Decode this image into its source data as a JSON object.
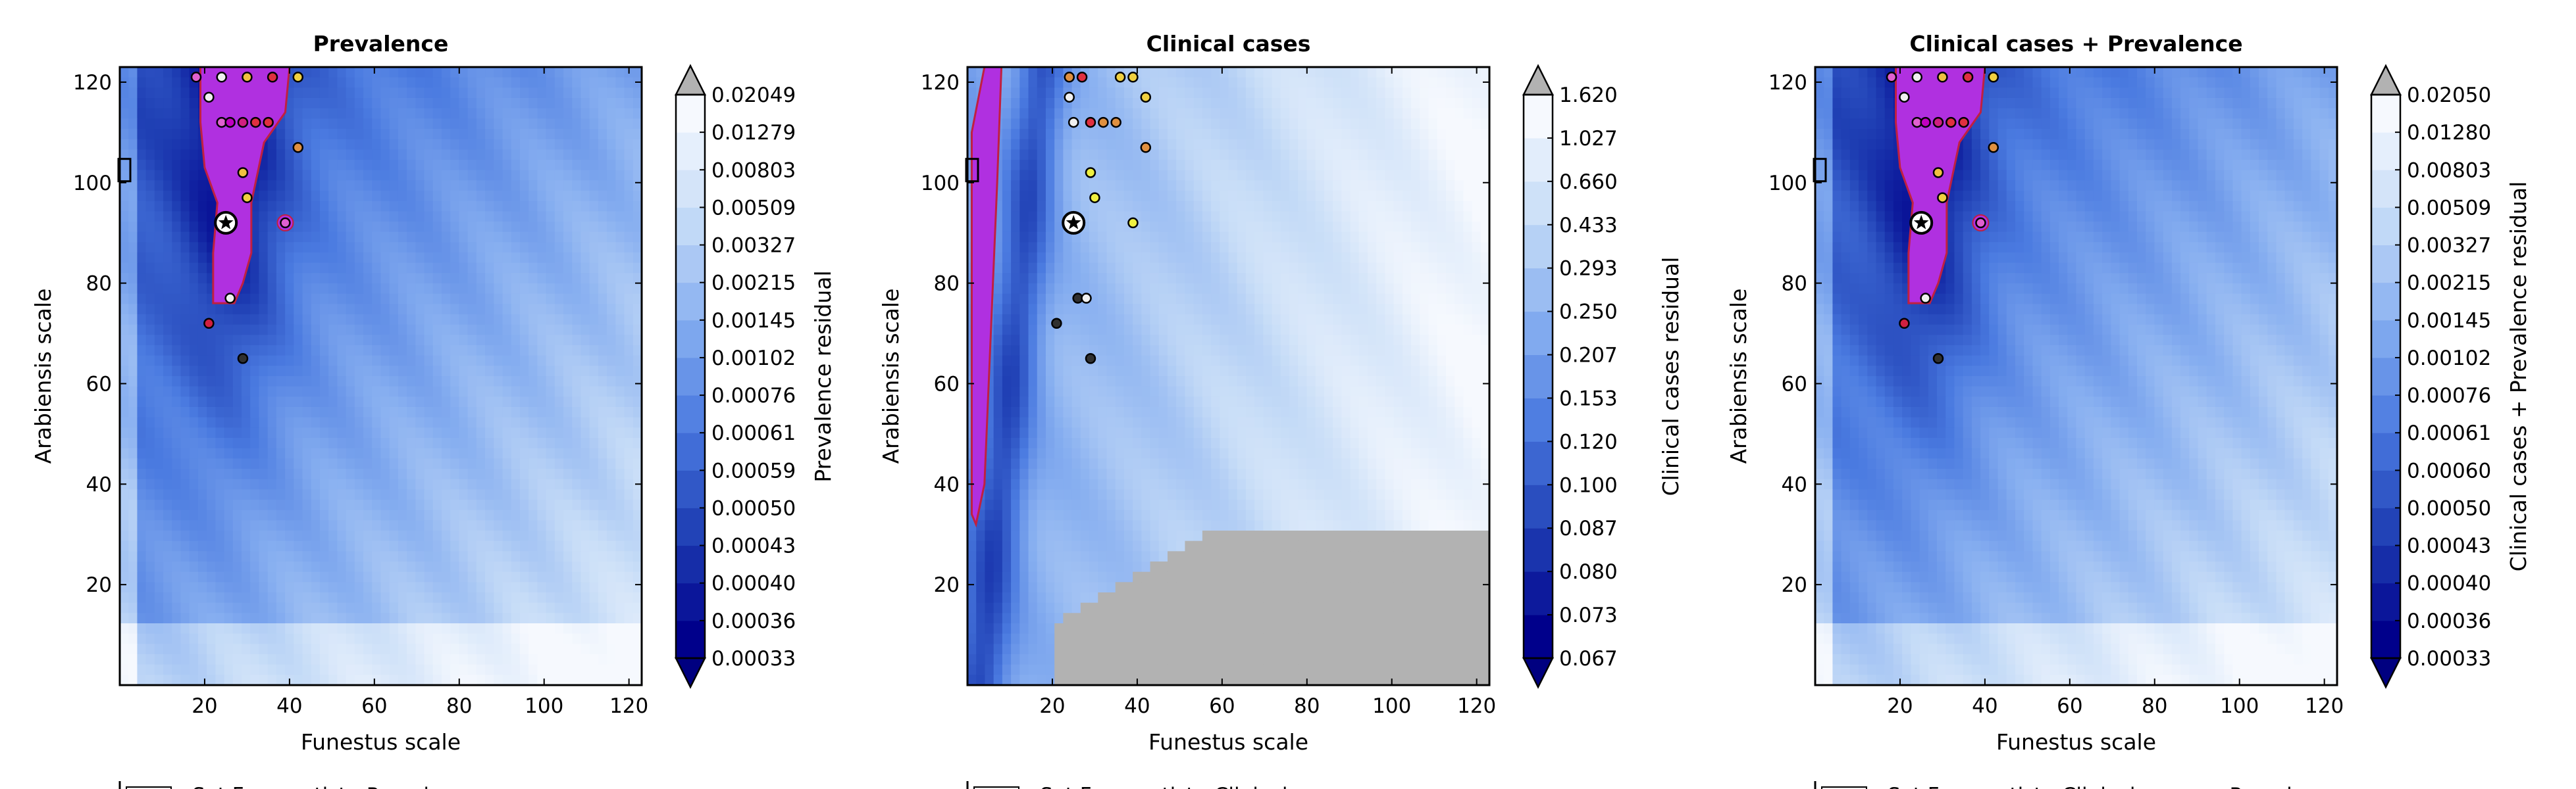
{
  "chart_data": [
    {
      "type": "heatmap",
      "title": "Prevalence",
      "xlabel": "Funestus scale",
      "ylabel": "Arabiensis scale",
      "xlim": [
        0,
        123
      ],
      "ylim": [
        0,
        123
      ],
      "xticks": [
        20,
        40,
        60,
        80,
        100,
        120
      ],
      "yticks": [
        20,
        40,
        60,
        80,
        100,
        120
      ],
      "colorbar": {
        "label": "Prevalence residual",
        "levels": [
          "0.00033",
          "0.00036",
          "0.00040",
          "0.00043",
          "0.00050",
          "0.00059",
          "0.00061",
          "0.00076",
          "0.00102",
          "0.00145",
          "0.00215",
          "0.00327",
          "0.00509",
          "0.00803",
          "0.01279",
          "0.02049"
        ],
        "extend": "both"
      },
      "highlight_color": "#b030e0",
      "best_fit_marker": [
        25,
        92
      ],
      "points": [
        {
          "x": 21,
          "y": 117,
          "color": "#f0f0f0"
        },
        {
          "x": 24,
          "y": 112,
          "color": "#e060d0"
        },
        {
          "x": 26,
          "y": 112,
          "color": "#c000c0"
        },
        {
          "x": 29,
          "y": 112,
          "color": "#d02080"
        },
        {
          "x": 32,
          "y": 112,
          "color": "#e03040"
        },
        {
          "x": 35,
          "y": 112,
          "color": "#e03040"
        },
        {
          "x": 29,
          "y": 102,
          "color": "#f0c040"
        },
        {
          "x": 30,
          "y": 97,
          "color": "#f0d040"
        },
        {
          "x": 39,
          "y": 92,
          "color": "#e060d0"
        },
        {
          "x": 42,
          "y": 107,
          "color": "#e09040"
        },
        {
          "x": 26,
          "y": 77,
          "color": "#f0f0f0"
        },
        {
          "x": 21,
          "y": 72,
          "color": "#d02040"
        },
        {
          "x": 29,
          "y": 65,
          "color": "#303030"
        }
      ],
      "top_points": [
        {
          "x": 18,
          "y": 121,
          "color": "#e060d0"
        },
        {
          "x": 24,
          "y": 121,
          "color": "#f0f0f0"
        },
        {
          "x": 30,
          "y": 121,
          "color": "#f0c040"
        },
        {
          "x": 36,
          "y": 121,
          "color": "#e03040"
        },
        {
          "x": 42,
          "y": 121,
          "color": "#f0d040"
        }
      ],
      "legend_text": "Set Frequentist : Prevalence"
    },
    {
      "type": "heatmap",
      "title": "Clinical cases",
      "xlabel": "Funestus scale",
      "ylabel": "Arabiensis scale",
      "xlim": [
        0,
        123
      ],
      "ylim": [
        0,
        123
      ],
      "xticks": [
        20,
        40,
        60,
        80,
        100,
        120
      ],
      "yticks": [
        20,
        40,
        60,
        80,
        100,
        120
      ],
      "colorbar": {
        "label": "Clinical cases residual",
        "levels": [
          "0.067",
          "0.073",
          "0.080",
          "0.087",
          "0.100",
          "0.120",
          "0.153",
          "0.207",
          "0.250",
          "0.293",
          "0.433",
          "0.660",
          "1.027",
          "1.620"
        ],
        "extend": "both"
      },
      "highlight_color": "#b030e0",
      "best_fit_marker": [
        25,
        92
      ],
      "points": [
        {
          "x": 24,
          "y": 117,
          "color": "#f0f0f0"
        },
        {
          "x": 25,
          "y": 112,
          "color": "#f0f0f0"
        },
        {
          "x": 29,
          "y": 112,
          "color": "#e03040"
        },
        {
          "x": 32,
          "y": 112,
          "color": "#e09040"
        },
        {
          "x": 35,
          "y": 112,
          "color": "#e09040"
        },
        {
          "x": 42,
          "y": 117,
          "color": "#f0d040"
        },
        {
          "x": 42,
          "y": 107,
          "color": "#e09040"
        },
        {
          "x": 29,
          "y": 102,
          "color": "#f0f040"
        },
        {
          "x": 30,
          "y": 97,
          "color": "#f0f040"
        },
        {
          "x": 39,
          "y": 92,
          "color": "#f0f040"
        },
        {
          "x": 26,
          "y": 77,
          "color": "#303030"
        },
        {
          "x": 28,
          "y": 77,
          "color": "#f0f0f0"
        },
        {
          "x": 21,
          "y": 72,
          "color": "#303030"
        },
        {
          "x": 29,
          "y": 65,
          "color": "#303030"
        }
      ],
      "top_points": [
        {
          "x": 24,
          "y": 121,
          "color": "#e09040"
        },
        {
          "x": 27,
          "y": 121,
          "color": "#e03040"
        },
        {
          "x": 36,
          "y": 121,
          "color": "#f0d040"
        },
        {
          "x": 39,
          "y": 121,
          "color": "#f0d040"
        }
      ],
      "legend_text": "Set Frequentist : Clinical cases"
    },
    {
      "type": "heatmap",
      "title": "Clinical cases + Prevalence",
      "xlabel": "Funestus scale",
      "ylabel": "Arabiensis scale",
      "xlim": [
        0,
        123
      ],
      "ylim": [
        0,
        123
      ],
      "xticks": [
        20,
        40,
        60,
        80,
        100,
        120
      ],
      "yticks": [
        20,
        40,
        60,
        80,
        100,
        120
      ],
      "colorbar": {
        "label": "Clinical cases + Prevalence residual",
        "levels": [
          "0.00033",
          "0.00036",
          "0.00040",
          "0.00043",
          "0.00050",
          "0.00060",
          "0.00061",
          "0.00076",
          "0.00102",
          "0.00145",
          "0.00215",
          "0.00327",
          "0.00509",
          "0.00803",
          "0.01280",
          "0.02050"
        ],
        "extend": "both"
      },
      "highlight_color": "#b030e0",
      "best_fit_marker": [
        25,
        92
      ],
      "points": [
        {
          "x": 21,
          "y": 117,
          "color": "#f0f0f0"
        },
        {
          "x": 24,
          "y": 112,
          "color": "#e060d0"
        },
        {
          "x": 26,
          "y": 112,
          "color": "#c000c0"
        },
        {
          "x": 29,
          "y": 112,
          "color": "#d02080"
        },
        {
          "x": 32,
          "y": 112,
          "color": "#e03040"
        },
        {
          "x": 35,
          "y": 112,
          "color": "#e03040"
        },
        {
          "x": 29,
          "y": 102,
          "color": "#f0c040"
        },
        {
          "x": 30,
          "y": 97,
          "color": "#f0d040"
        },
        {
          "x": 39,
          "y": 92,
          "color": "#e060d0"
        },
        {
          "x": 42,
          "y": 107,
          "color": "#e09040"
        },
        {
          "x": 26,
          "y": 77,
          "color": "#f0f0f0"
        },
        {
          "x": 21,
          "y": 72,
          "color": "#d02040"
        },
        {
          "x": 29,
          "y": 65,
          "color": "#303030"
        }
      ],
      "top_points": [
        {
          "x": 18,
          "y": 121,
          "color": "#e060d0"
        },
        {
          "x": 24,
          "y": 121,
          "color": "#f0f0f0"
        },
        {
          "x": 30,
          "y": 121,
          "color": "#f0c040"
        },
        {
          "x": 36,
          "y": 121,
          "color": "#e03040"
        },
        {
          "x": 42,
          "y": 121,
          "color": "#f0d040"
        }
      ],
      "legend_text": "Set Frequentist : Clinical cases + Prevalence"
    }
  ]
}
